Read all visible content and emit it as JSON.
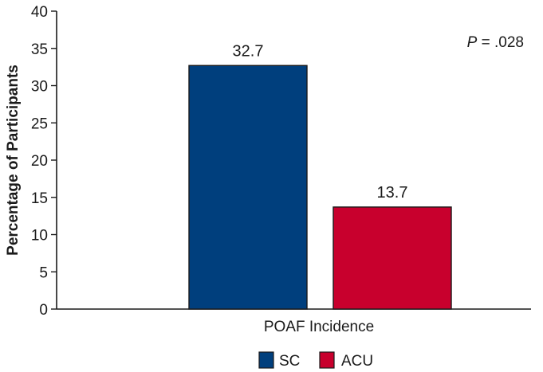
{
  "chart_data": {
    "type": "bar",
    "categories": [
      "POAF Incidence"
    ],
    "series": [
      {
        "name": "SC",
        "values": [
          32.7
        ],
        "color": "#003f7d"
      },
      {
        "name": "ACU",
        "values": [
          13.7
        ],
        "color": "#c8002d"
      }
    ],
    "data_labels": [
      "32.7",
      "13.7"
    ],
    "title": "",
    "xlabel": "POAF Incidence",
    "ylabel": "Percentage of Participants",
    "ylim": [
      0,
      40
    ],
    "yticks": [
      0,
      5,
      10,
      15,
      20,
      25,
      30,
      35,
      40
    ],
    "annotation": {
      "italic_part": "P",
      "rest": " = .028"
    },
    "legend_position": "bottom",
    "grid": false
  }
}
